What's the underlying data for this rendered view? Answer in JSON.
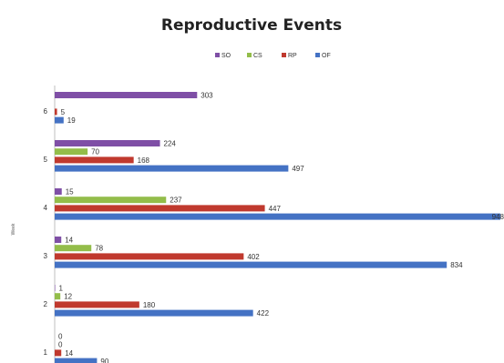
{
  "chart_data": {
    "type": "bar",
    "orientation": "horizontal",
    "title": "Reproductive Events",
    "ylabel": "Week",
    "xlabel": "",
    "categories": [
      "1",
      "2",
      "3",
      "4",
      "5",
      "6"
    ],
    "series": [
      {
        "name": "SO",
        "color": "#7f4fa6",
        "values": [
          0,
          1,
          14,
          15,
          224,
          303
        ]
      },
      {
        "name": "CS",
        "color": "#93bd4a",
        "values": [
          0,
          12,
          78,
          237,
          70,
          0
        ]
      },
      {
        "name": "RP",
        "color": "#c0392e",
        "values": [
          14,
          180,
          402,
          447,
          168,
          5
        ]
      },
      {
        "name": "OF",
        "color": "#4472c4",
        "values": [
          90,
          422,
          834,
          948,
          497,
          19
        ]
      }
    ],
    "xlim": [
      0,
      948
    ],
    "legend_position": "top",
    "grid": false
  }
}
